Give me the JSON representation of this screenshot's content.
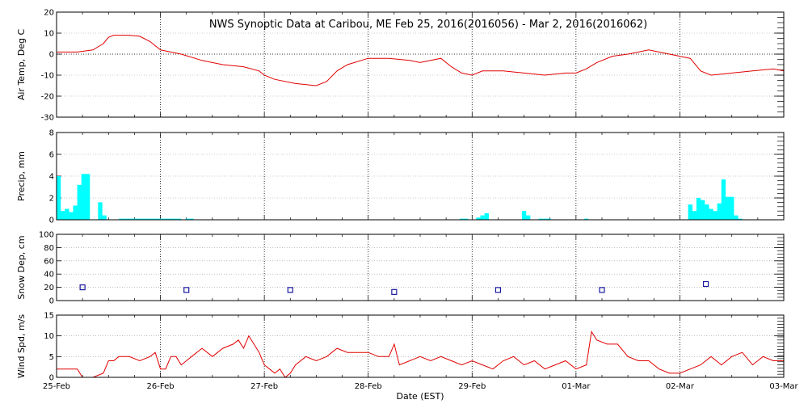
{
  "title": "NWS Synoptic Data at Caribou, ME   Feb 25, 2016(2016056) - Mar  2, 2016(2016062)",
  "x_axis": {
    "label": "Date (EST)",
    "range_days": [
      0,
      7
    ],
    "ticks": [
      {
        "day": 0,
        "label": "25-Feb"
      },
      {
        "day": 1,
        "label": "26-Feb"
      },
      {
        "day": 2,
        "label": "27-Feb"
      },
      {
        "day": 3,
        "label": "28-Feb"
      },
      {
        "day": 4,
        "label": "29-Feb"
      },
      {
        "day": 5,
        "label": "01-Mar"
      },
      {
        "day": 6,
        "label": "02-Mar"
      },
      {
        "day": 7,
        "label": "03-Mar"
      }
    ]
  },
  "chart_data": [
    {
      "id": "temp",
      "type": "line",
      "ylabel": "Air Temp, Deg C",
      "ylim": [
        -30,
        20
      ],
      "yticks": [
        -30,
        -20,
        -10,
        0,
        10,
        20
      ],
      "color": "#e00000",
      "points": [
        [
          0.0,
          1
        ],
        [
          0.2,
          1
        ],
        [
          0.35,
          2
        ],
        [
          0.45,
          5
        ],
        [
          0.5,
          8
        ],
        [
          0.55,
          9
        ],
        [
          0.7,
          9
        ],
        [
          0.8,
          8.5
        ],
        [
          0.9,
          6
        ],
        [
          1.0,
          2
        ],
        [
          1.1,
          1
        ],
        [
          1.2,
          0
        ],
        [
          1.4,
          -3
        ],
        [
          1.6,
          -5
        ],
        [
          1.8,
          -6
        ],
        [
          1.95,
          -8
        ],
        [
          2.0,
          -10
        ],
        [
          2.1,
          -12
        ],
        [
          2.3,
          -14
        ],
        [
          2.5,
          -15
        ],
        [
          2.6,
          -13
        ],
        [
          2.7,
          -8
        ],
        [
          2.8,
          -5
        ],
        [
          3.0,
          -2
        ],
        [
          3.2,
          -2
        ],
        [
          3.4,
          -3
        ],
        [
          3.5,
          -4
        ],
        [
          3.6,
          -3
        ],
        [
          3.7,
          -2
        ],
        [
          3.8,
          -6
        ],
        [
          3.9,
          -9
        ],
        [
          4.0,
          -10
        ],
        [
          4.1,
          -8
        ],
        [
          4.3,
          -8
        ],
        [
          4.5,
          -9
        ],
        [
          4.7,
          -10
        ],
        [
          4.9,
          -9
        ],
        [
          5.0,
          -9
        ],
        [
          5.1,
          -7
        ],
        [
          5.2,
          -4
        ],
        [
          5.35,
          -1
        ],
        [
          5.5,
          0
        ],
        [
          5.7,
          2
        ],
        [
          5.8,
          1
        ],
        [
          5.9,
          0
        ],
        [
          6.0,
          -1
        ],
        [
          6.1,
          -2
        ],
        [
          6.2,
          -8
        ],
        [
          6.3,
          -10
        ],
        [
          6.5,
          -9
        ],
        [
          6.7,
          -8
        ],
        [
          6.9,
          -7
        ],
        [
          7.0,
          -8
        ]
      ]
    },
    {
      "id": "precip",
      "type": "bar",
      "ylabel": "Precip, mm",
      "ylim": [
        0,
        8
      ],
      "yticks": [
        0,
        2,
        4,
        6,
        8
      ],
      "color": "#00ffff",
      "bar_width_days": 0.0417,
      "bars": [
        {
          "x": 0.02,
          "v": 4
        },
        {
          "x": 0.06,
          "v": 0.8
        },
        {
          "x": 0.1,
          "v": 1
        },
        {
          "x": 0.14,
          "v": 0.7
        },
        {
          "x": 0.18,
          "v": 1.3
        },
        {
          "x": 0.22,
          "v": 3.2
        },
        {
          "x": 0.26,
          "v": 4.2
        },
        {
          "x": 0.3,
          "v": 4.2
        },
        {
          "x": 0.42,
          "v": 1.6
        },
        {
          "x": 0.46,
          "v": 0.4
        },
        {
          "x": 0.62,
          "v": 0.1
        },
        {
          "x": 0.66,
          "v": 0.1
        },
        {
          "x": 0.7,
          "v": 0.1
        },
        {
          "x": 0.74,
          "v": 0.1
        },
        {
          "x": 0.78,
          "v": 0.1
        },
        {
          "x": 0.82,
          "v": 0.1
        },
        {
          "x": 0.86,
          "v": 0.1
        },
        {
          "x": 0.9,
          "v": 0.1
        },
        {
          "x": 0.94,
          "v": 0.1
        },
        {
          "x": 0.98,
          "v": 0.1
        },
        {
          "x": 1.02,
          "v": 0.1
        },
        {
          "x": 1.06,
          "v": 0.1
        },
        {
          "x": 1.1,
          "v": 0.1
        },
        {
          "x": 1.14,
          "v": 0.1
        },
        {
          "x": 1.18,
          "v": 0.1
        },
        {
          "x": 1.26,
          "v": 0.1
        },
        {
          "x": 1.3,
          "v": 0.1
        },
        {
          "x": 3.9,
          "v": 0.1
        },
        {
          "x": 3.94,
          "v": 0.1
        },
        {
          "x": 4.06,
          "v": 0.2
        },
        {
          "x": 4.1,
          "v": 0.4
        },
        {
          "x": 4.14,
          "v": 0.6
        },
        {
          "x": 4.5,
          "v": 0.8
        },
        {
          "x": 4.54,
          "v": 0.4
        },
        {
          "x": 4.66,
          "v": 0.1
        },
        {
          "x": 4.7,
          "v": 0.1
        },
        {
          "x": 4.74,
          "v": 0.1
        },
        {
          "x": 5.1,
          "v": 0.1
        },
        {
          "x": 6.1,
          "v": 1.4
        },
        {
          "x": 6.14,
          "v": 0.8
        },
        {
          "x": 6.18,
          "v": 2.0
        },
        {
          "x": 6.22,
          "v": 1.8
        },
        {
          "x": 6.26,
          "v": 1.4
        },
        {
          "x": 6.3,
          "v": 1.0
        },
        {
          "x": 6.34,
          "v": 0.8
        },
        {
          "x": 6.38,
          "v": 1.5
        },
        {
          "x": 6.42,
          "v": 3.7
        },
        {
          "x": 6.46,
          "v": 2.1
        },
        {
          "x": 6.5,
          "v": 2.1
        },
        {
          "x": 6.54,
          "v": 0.4
        },
        {
          "x": 6.58,
          "v": 0.1
        }
      ]
    },
    {
      "id": "snow",
      "type": "scatter",
      "ylabel": "Snow Dep, cm",
      "ylim": [
        0,
        100
      ],
      "yticks": [
        0,
        20,
        40,
        60,
        80,
        100
      ],
      "color": "#1a1aa0",
      "marker": "square",
      "points": [
        [
          0.25,
          20
        ],
        [
          1.25,
          16
        ],
        [
          2.25,
          16
        ],
        [
          3.25,
          13
        ],
        [
          4.25,
          16
        ],
        [
          5.25,
          16
        ],
        [
          6.25,
          25
        ]
      ]
    },
    {
      "id": "wind",
      "type": "line",
      "ylabel": "Wind Spd, m/s",
      "ylim": [
        0,
        15
      ],
      "yticks": [
        0,
        5,
        10,
        15
      ],
      "color": "#e00000",
      "points": [
        [
          0.0,
          2
        ],
        [
          0.2,
          2
        ],
        [
          0.25,
          0
        ],
        [
          0.35,
          0
        ],
        [
          0.45,
          1
        ],
        [
          0.5,
          4
        ],
        [
          0.55,
          4
        ],
        [
          0.6,
          5
        ],
        [
          0.7,
          5
        ],
        [
          0.8,
          4
        ],
        [
          0.9,
          5
        ],
        [
          0.95,
          6
        ],
        [
          1.0,
          2
        ],
        [
          1.05,
          2
        ],
        [
          1.1,
          5
        ],
        [
          1.15,
          5
        ],
        [
          1.2,
          3
        ],
        [
          1.25,
          4
        ],
        [
          1.3,
          5
        ],
        [
          1.4,
          7
        ],
        [
          1.5,
          5
        ],
        [
          1.6,
          7
        ],
        [
          1.7,
          8
        ],
        [
          1.75,
          9
        ],
        [
          1.8,
          7
        ],
        [
          1.85,
          10
        ],
        [
          1.9,
          8
        ],
        [
          1.95,
          6
        ],
        [
          2.0,
          3
        ],
        [
          2.05,
          2
        ],
        [
          2.1,
          1
        ],
        [
          2.15,
          2
        ],
        [
          2.2,
          0
        ],
        [
          2.25,
          1
        ],
        [
          2.3,
          3
        ],
        [
          2.4,
          5
        ],
        [
          2.5,
          4
        ],
        [
          2.6,
          5
        ],
        [
          2.7,
          7
        ],
        [
          2.8,
          6
        ],
        [
          2.9,
          6
        ],
        [
          3.0,
          6
        ],
        [
          3.1,
          5
        ],
        [
          3.2,
          5
        ],
        [
          3.25,
          8
        ],
        [
          3.3,
          3
        ],
        [
          3.4,
          4
        ],
        [
          3.5,
          5
        ],
        [
          3.6,
          4
        ],
        [
          3.7,
          5
        ],
        [
          3.8,
          4
        ],
        [
          3.9,
          3
        ],
        [
          4.0,
          4
        ],
        [
          4.1,
          3
        ],
        [
          4.2,
          2
        ],
        [
          4.3,
          4
        ],
        [
          4.4,
          5
        ],
        [
          4.5,
          3
        ],
        [
          4.6,
          4
        ],
        [
          4.7,
          2
        ],
        [
          4.8,
          3
        ],
        [
          4.9,
          4
        ],
        [
          5.0,
          2
        ],
        [
          5.1,
          3
        ],
        [
          5.15,
          11
        ],
        [
          5.2,
          9
        ],
        [
          5.3,
          8
        ],
        [
          5.4,
          8
        ],
        [
          5.5,
          5
        ],
        [
          5.6,
          4
        ],
        [
          5.7,
          4
        ],
        [
          5.8,
          2
        ],
        [
          5.9,
          1
        ],
        [
          6.0,
          1
        ],
        [
          6.1,
          2
        ],
        [
          6.2,
          3
        ],
        [
          6.3,
          5
        ],
        [
          6.4,
          3
        ],
        [
          6.5,
          5
        ],
        [
          6.6,
          6
        ],
        [
          6.7,
          3
        ],
        [
          6.8,
          5
        ],
        [
          6.9,
          4
        ],
        [
          7.0,
          4
        ]
      ]
    }
  ]
}
